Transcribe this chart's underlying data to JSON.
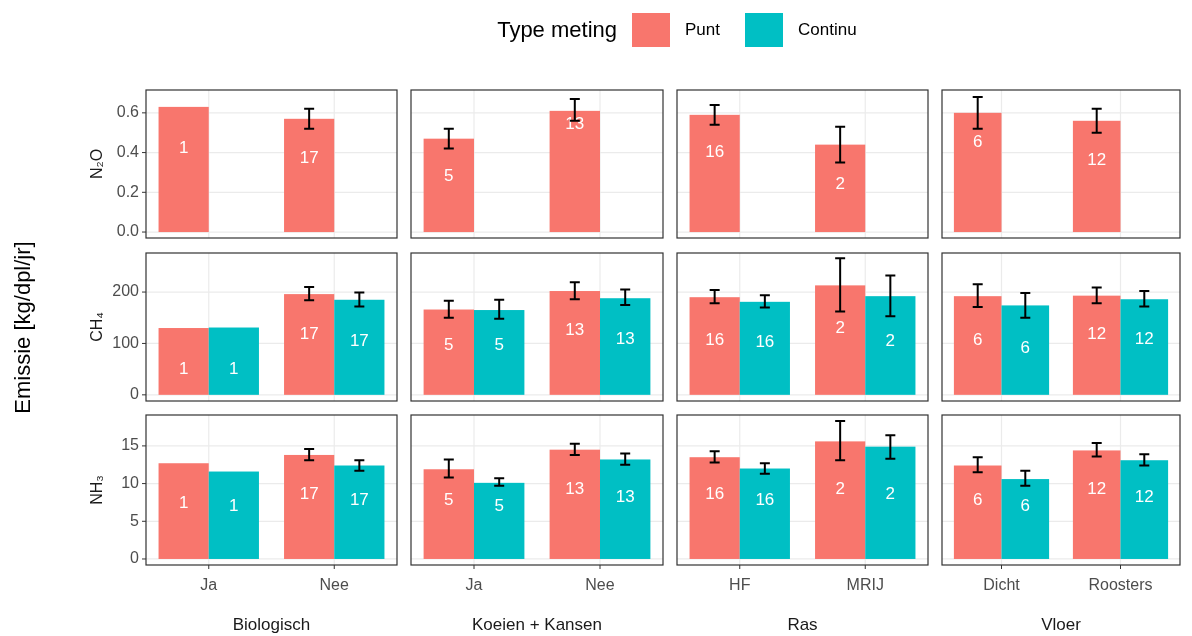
{
  "chart_data": [
    {
      "type": "bar",
      "categories": [
        "Ja",
        "Nee"
      ],
      "ylabel": "N₂O",
      "legend": "top",
      "legend_title": "Type meting",
      "grid": true,
      "tick_labels": "y",
      "ylim": [
        -0.03,
        0.715
      ],
      "yticks": [
        {
          "value": 0,
          "label": "0.0"
        },
        0.2,
        0.4,
        0.6
      ],
      "series": [
        {
          "name": "Punt",
          "color": "#f8766d",
          "values": [
            0.63,
            0.57
          ],
          "errors": [
            null,
            [
              0.52,
              0.62
            ]
          ]
        },
        {
          "name": "Continu",
          "color": "#00bfc4",
          "values": [
            null,
            null
          ]
        }
      ],
      "annotations": [
        "Emissie [kg/dpl/jr]",
        {
          "text": "1",
          "x": "Ja",
          "y": 0.42
        },
        {
          "text": "17",
          "x": "Nee",
          "y": 0.37
        }
      ]
    },
    {
      "type": "bar",
      "categories": [
        "Ja",
        "Nee"
      ],
      "grid": true,
      "tick_labels": false,
      "ylim": [
        -0.03,
        0.715
      ],
      "yticks": [
        0,
        0.2,
        0.4,
        0.6
      ],
      "series": [
        {
          "color": "#f8766d",
          "values": [
            0.47,
            0.61
          ],
          "errors": [
            [
              0.42,
              0.52
            ],
            [
              0.56,
              0.67
            ]
          ]
        },
        {
          "color": "#00bfc4",
          "values": [
            null,
            null
          ]
        }
      ],
      "annotations": [
        {
          "text": "5",
          "x": "Ja",
          "y": 0.28
        },
        {
          "text": "13",
          "x": "Nee",
          "y": 0.54
        }
      ]
    },
    {
      "type": "bar",
      "categories": [
        "HF",
        "MRIJ"
      ],
      "grid": true,
      "tick_labels": false,
      "ylim": [
        -0.03,
        0.715
      ],
      "yticks": [
        0,
        0.2,
        0.4,
        0.6
      ],
      "series": [
        {
          "color": "#f8766d",
          "values": [
            0.59,
            0.44
          ],
          "errors": [
            [
              0.54,
              0.64
            ],
            [
              0.35,
              0.53
            ]
          ]
        },
        {
          "color": "#00bfc4",
          "values": [
            null,
            null
          ]
        }
      ],
      "annotations": [
        {
          "text": "16",
          "x": "HF",
          "y": 0.4
        },
        {
          "text": "2",
          "x": "MRIJ",
          "y": 0.24
        }
      ]
    },
    {
      "type": "bar",
      "categories": [
        "Dicht",
        "Roosters"
      ],
      "grid": true,
      "tick_labels": false,
      "ylim": [
        -0.03,
        0.715
      ],
      "yticks": [
        0,
        0.2,
        0.4,
        0.6
      ],
      "series": [
        {
          "color": "#f8766d",
          "values": [
            0.6,
            0.56
          ],
          "errors": [
            [
              0.52,
              0.68
            ],
            [
              0.5,
              0.62
            ]
          ]
        },
        {
          "color": "#00bfc4",
          "values": [
            null,
            null
          ]
        }
      ],
      "annotations": [
        {
          "text": "6",
          "x": "Dicht",
          "y": 0.45
        },
        {
          "text": "12",
          "x": "Roosters",
          "y": 0.36
        }
      ]
    },
    {
      "type": "bar",
      "categories": [
        "Ja",
        "Nee"
      ],
      "ylabel": "CH₄",
      "grid": true,
      "tick_labels": "y",
      "ylim": [
        -12,
        276
      ],
      "yticks": [
        0,
        100,
        200
      ],
      "series": [
        {
          "color": "#f8766d",
          "values": [
            130,
            196
          ],
          "errors": [
            null,
            [
              184,
              210
            ]
          ]
        },
        {
          "color": "#00bfc4",
          "values": [
            131,
            185
          ],
          "errors": [
            null,
            [
              172,
              199
            ]
          ]
        }
      ],
      "annotations": [
        {
          "text": "1",
          "x": "Ja",
          "y": 49
        },
        {
          "text": "1",
          "x": "Ja",
          "y": 49
        },
        {
          "text": "17",
          "x": "Nee",
          "y": 117
        },
        {
          "text": "17",
          "x": "Nee",
          "y": 103
        }
      ]
    },
    {
      "type": "bar",
      "categories": [
        "Ja",
        "Nee"
      ],
      "grid": true,
      "tick_labels": false,
      "ylim": [
        -12,
        276
      ],
      "yticks": [
        0,
        100,
        200
      ],
      "series": [
        {
          "color": "#f8766d",
          "values": [
            166,
            202
          ],
          "errors": [
            [
              150,
              183
            ],
            [
              186,
              219
            ]
          ]
        },
        {
          "color": "#00bfc4",
          "values": [
            165,
            188
          ],
          "errors": [
            [
              148,
              185
            ],
            [
              175,
              205
            ]
          ]
        }
      ],
      "annotations": [
        {
          "text": "5",
          "x": "Ja",
          "y": 95
        },
        {
          "text": "5",
          "x": "Ja",
          "y": 95
        },
        {
          "text": "13",
          "x": "Nee",
          "y": 126
        },
        {
          "text": "13",
          "x": "Nee",
          "y": 107
        }
      ]
    },
    {
      "type": "bar",
      "categories": [
        "HF",
        "MRIJ"
      ],
      "grid": true,
      "tick_labels": false,
      "ylim": [
        -12,
        276
      ],
      "yticks": [
        0,
        100,
        200
      ],
      "series": [
        {
          "color": "#f8766d",
          "values": [
            190,
            213
          ],
          "errors": [
            [
              178,
              204
            ],
            [
              162,
              266
            ]
          ]
        },
        {
          "color": "#00bfc4",
          "values": [
            181,
            192
          ],
          "errors": [
            [
              170,
              194
            ],
            [
              153,
              232
            ]
          ]
        }
      ],
      "annotations": [
        {
          "text": "16",
          "x": "HF",
          "y": 105
        },
        {
          "text": "16",
          "x": "HF",
          "y": 101
        },
        {
          "text": "2",
          "x": "MRIJ",
          "y": 130
        },
        {
          "text": "2",
          "x": "MRIJ",
          "y": 103
        }
      ]
    },
    {
      "type": "bar",
      "categories": [
        "Dicht",
        "Roosters"
      ],
      "grid": true,
      "tick_labels": false,
      "ylim": [
        -12,
        276
      ],
      "yticks": [
        0,
        100,
        200
      ],
      "series": [
        {
          "color": "#f8766d",
          "values": [
            192,
            193
          ],
          "errors": [
            [
              171,
              215
            ],
            [
              178,
              209
            ]
          ]
        },
        {
          "color": "#00bfc4",
          "values": [
            174,
            186
          ],
          "errors": [
            [
              150,
              198
            ],
            [
              172,
              202
            ]
          ]
        }
      ],
      "annotations": [
        {
          "text": "6",
          "x": "Dicht",
          "y": 105
        },
        {
          "text": "6",
          "x": "Dicht",
          "y": 91
        },
        {
          "text": "12",
          "x": "Roosters",
          "y": 117
        },
        {
          "text": "12",
          "x": "Roosters",
          "y": 107
        }
      ]
    },
    {
      "type": "bar",
      "categories": [
        "Ja",
        "Nee"
      ],
      "ylabel": "NH₃",
      "xlabel": "Biologisch",
      "grid": true,
      "ylim": [
        -0.8,
        19.1
      ],
      "yticks": [
        0,
        5,
        10,
        15
      ],
      "series": [
        {
          "color": "#f8766d",
          "values": [
            12.7,
            13.8
          ],
          "errors": [
            null,
            [
              13.1,
              14.6
            ]
          ]
        },
        {
          "color": "#00bfc4",
          "values": [
            11.6,
            12.4
          ],
          "errors": [
            null,
            [
              11.7,
              13.1
            ]
          ]
        }
      ],
      "annotations": [
        {
          "text": "1",
          "x": "Ja",
          "y": 7.4
        },
        {
          "text": "1",
          "x": "Ja",
          "y": 7
        },
        {
          "text": "17",
          "x": "Nee",
          "y": 8.5
        },
        {
          "text": "17",
          "x": "Nee",
          "y": 7.8
        }
      ]
    },
    {
      "type": "bar",
      "categories": [
        "Ja",
        "Nee"
      ],
      "xlabel": "Koeien + Kansen",
      "grid": true,
      "tick_labels": "x",
      "ylim": [
        -0.8,
        19.1
      ],
      "yticks": [
        0,
        5,
        10,
        15
      ],
      "series": [
        {
          "color": "#f8766d",
          "values": [
            11.9,
            14.5
          ],
          "errors": [
            [
              10.8,
              13.2
            ],
            [
              13.8,
              15.3
            ]
          ]
        },
        {
          "color": "#00bfc4",
          "values": [
            10.1,
            13.2
          ],
          "errors": [
            [
              9.7,
              10.7
            ],
            [
              12.5,
              14
            ]
          ]
        }
      ],
      "annotations": [
        {
          "text": "5",
          "x": "Ja",
          "y": 7.8
        },
        {
          "text": "5",
          "x": "Ja",
          "y": 7
        },
        {
          "text": "13",
          "x": "Nee",
          "y": 9.2
        },
        {
          "text": "13",
          "x": "Nee",
          "y": 8.2
        }
      ]
    },
    {
      "type": "bar",
      "categories": [
        "HF",
        "MRIJ"
      ],
      "xlabel": "Ras",
      "grid": true,
      "tick_labels": "x",
      "ylim": [
        -0.8,
        19.1
      ],
      "yticks": [
        0,
        5,
        10,
        15
      ],
      "series": [
        {
          "color": "#f8766d",
          "values": [
            13.5,
            15.6
          ],
          "errors": [
            [
              12.8,
              14.3
            ],
            [
              13.1,
              18.3
            ]
          ]
        },
        {
          "color": "#00bfc4",
          "values": [
            12,
            14.9
          ],
          "errors": [
            [
              11.3,
              12.7
            ],
            [
              13.3,
              16.4
            ]
          ]
        }
      ],
      "annotations": [
        {
          "text": "16",
          "x": "HF",
          "y": 8.5
        },
        {
          "text": "16",
          "x": "HF",
          "y": 7.8
        },
        {
          "text": "2",
          "x": "MRIJ",
          "y": 9.2
        },
        {
          "text": "2",
          "x": "MRIJ",
          "y": 8.6
        }
      ]
    },
    {
      "type": "bar",
      "categories": [
        "Dicht",
        "Roosters"
      ],
      "xlabel": "Vloer",
      "grid": true,
      "tick_labels": "x",
      "ylim": [
        -0.8,
        19.1
      ],
      "yticks": [
        0,
        5,
        10,
        15
      ],
      "series": [
        {
          "color": "#f8766d",
          "values": [
            12.4,
            14.4
          ],
          "errors": [
            [
              11.5,
              13.5
            ],
            [
              13.6,
              15.4
            ]
          ]
        },
        {
          "color": "#00bfc4",
          "values": [
            10.6,
            13.1
          ],
          "errors": [
            [
              9.7,
              11.7
            ],
            [
              12.4,
              13.9
            ]
          ]
        }
      ],
      "annotations": [
        {
          "text": "6",
          "x": "Dicht",
          "y": 7.8
        },
        {
          "text": "6",
          "x": "Dicht",
          "y": 7
        },
        {
          "text": "12",
          "x": "Roosters",
          "y": 9.2
        },
        {
          "text": "12",
          "x": "Roosters",
          "y": 8.2
        }
      ]
    }
  ]
}
